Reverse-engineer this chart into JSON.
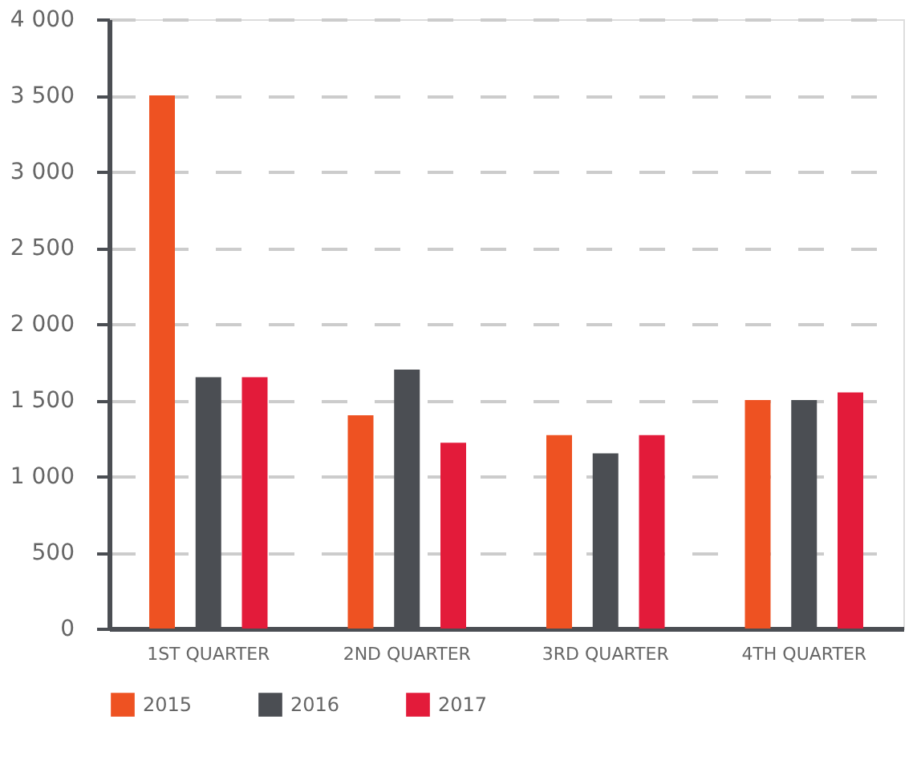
{
  "chart_data": {
    "type": "bar",
    "categories": [
      "1ST QUARTER",
      "2ND QUARTER",
      "3RD QUARTER",
      "4TH QUARTER"
    ],
    "series": [
      {
        "name": "2015",
        "color": "#ee5222",
        "values": [
          3500,
          1400,
          1270,
          1500
        ]
      },
      {
        "name": "2016",
        "color": "#4b4e53",
        "values": [
          1650,
          1700,
          1150,
          1500
        ]
      },
      {
        "name": "2017",
        "color": "#e31b3a",
        "values": [
          1650,
          1220,
          1270,
          1550
        ]
      }
    ],
    "ylim": [
      0,
      4000
    ],
    "yticks": [
      0,
      {
        "value": 500,
        "label": "500"
      },
      {
        "value": 1000,
        "label": "1 000"
      },
      {
        "value": 1500,
        "label": "1 500"
      },
      {
        "value": 2000,
        "label": "2 000"
      },
      {
        "value": 2500,
        "label": "2 500"
      },
      {
        "value": 3000,
        "label": "3 000"
      },
      {
        "value": 3500,
        "label": "3 500"
      },
      {
        "value": 4000,
        "label": "4 000"
      }
    ],
    "grid": "y",
    "legend": "bottom left"
  }
}
